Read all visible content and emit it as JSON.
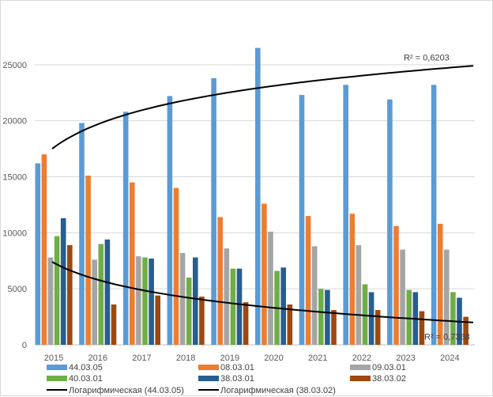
{
  "chart_data": {
    "type": "bar",
    "title": "",
    "xlabel": "",
    "ylabel": "",
    "ylim": [
      0,
      30000
    ],
    "yticks": [
      0,
      5000,
      10000,
      15000,
      20000,
      25000
    ],
    "categories": [
      "2015",
      "2016",
      "2017",
      "2018",
      "2019",
      "2020",
      "2021",
      "2022",
      "2023",
      "2024"
    ],
    "series": [
      {
        "name": "44.03.05",
        "color": "#5B9BD5",
        "values": [
          16200,
          19800,
          20800,
          22200,
          23800,
          26500,
          22300,
          23200,
          21900,
          23200
        ]
      },
      {
        "name": "08.03.01",
        "color": "#ED7D31",
        "values": [
          17000,
          15100,
          14500,
          14000,
          11400,
          12600,
          11500,
          11700,
          10600,
          10800
        ]
      },
      {
        "name": "09.03.01",
        "color": "#A5A5A5",
        "values": [
          7800,
          7600,
          7900,
          8200,
          8600,
          10100,
          8800,
          8900,
          8500,
          8500
        ]
      },
      {
        "name": "40.03.01",
        "color": "#70AD47",
        "values": [
          9700,
          9000,
          7800,
          6000,
          6800,
          6600,
          5000,
          5400,
          4900,
          4700
        ]
      },
      {
        "name": "38.03.01",
        "color": "#255E91",
        "values": [
          11300,
          9400,
          7700,
          7800,
          6800,
          6900,
          4900,
          4700,
          4700,
          4200
        ]
      },
      {
        "name": "38.03.02",
        "color": "#9E480E",
        "values": [
          8900,
          3600,
          4400,
          4300,
          3800,
          3600,
          3100,
          3100,
          3000,
          2500
        ]
      }
    ],
    "trendlines": [
      {
        "name": "Логарифмическая (44.03.05)",
        "type": "logarithmic",
        "series": "44.03.05",
        "r2_label": "R² = 0,6203",
        "values_at_start_and_end": [
          17500,
          24900
        ]
      },
      {
        "name": "Логарифмическая (38.03.02)",
        "type": "logarithmic",
        "series": "38.03.02",
        "r2_label": "R² = 0,7368",
        "values_at_start_and_end": [
          7400,
          2000
        ]
      }
    ],
    "legend": "bottom",
    "grid": true
  }
}
